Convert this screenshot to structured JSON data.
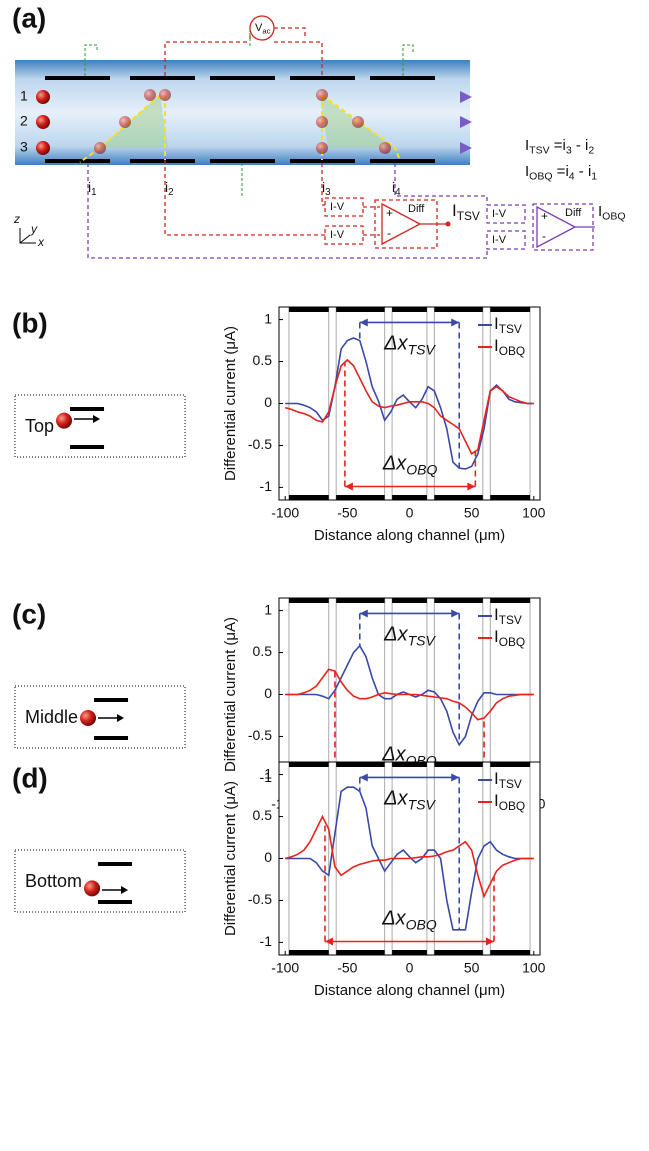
{
  "diagram": {
    "panel": "(a)",
    "rows": [
      "1",
      "2",
      "3"
    ],
    "source": [
      "V",
      "ac"
    ],
    "currents": [
      [
        "i",
        "1"
      ],
      [
        "i",
        "2"
      ],
      [
        "i",
        "3"
      ],
      [
        "i",
        "4"
      ]
    ],
    "converter": "I-V",
    "amp": "Diff",
    "plus": "+",
    "minus": "-",
    "outputs": [
      [
        "I",
        "TSV"
      ],
      [
        "I",
        "OBQ"
      ]
    ],
    "equations": [
      [
        "I",
        "TSV",
        " =i",
        "3",
        " - i",
        "2"
      ],
      [
        "I",
        "OBQ",
        " =i",
        "4",
        " - i",
        "1"
      ]
    ],
    "axes": [
      "z",
      "y",
      "x"
    ]
  },
  "chart_data": [
    {
      "type": "line",
      "panel": "(b)",
      "inset": "Top",
      "xlabel": "Distance along channel (μm)",
      "ylabel": "Differential current (μA)",
      "xlim": [
        -105,
        105
      ],
      "xticks": [
        -100,
        -50,
        0,
        50,
        100
      ],
      "ylim": [
        -1.15,
        1.15
      ],
      "yticks": [
        1,
        0.5,
        0,
        -0.5,
        -1
      ],
      "electrodes": [
        [
          -97,
          -65
        ],
        [
          -59,
          -20
        ],
        [
          -14,
          14
        ],
        [
          20,
          59
        ],
        [
          65,
          97
        ]
      ],
      "x": [
        -100,
        -95,
        -90,
        -85,
        -80,
        -75,
        -70,
        -65,
        -60,
        -55,
        -50,
        -45,
        -40,
        -35,
        -30,
        -25,
        -20,
        -15,
        -10,
        -5,
        0,
        5,
        10,
        15,
        20,
        25,
        30,
        35,
        40,
        45,
        50,
        55,
        60,
        65,
        70,
        75,
        80,
        85,
        90,
        95,
        100
      ],
      "series": [
        {
          "name": [
            "I",
            "TSV"
          ],
          "color": "#3a48a8",
          "delta": [
            "Δx",
            "TSV"
          ],
          "marker_x": [
            -40,
            40
          ],
          "values": [
            0,
            0,
            0,
            -0.02,
            -0.05,
            -0.1,
            -0.2,
            -0.15,
            0.2,
            0.65,
            0.75,
            0.78,
            0.75,
            0.5,
            0.2,
            0.03,
            -0.2,
            -0.1,
            0.05,
            0.1,
            0.02,
            -0.05,
            0.05,
            0.2,
            0.15,
            -0.05,
            -0.3,
            -0.7,
            -0.77,
            -0.78,
            -0.75,
            -0.6,
            -0.3,
            0.15,
            0.22,
            0.15,
            0.05,
            0.02,
            0.01,
            0,
            0
          ]
        },
        {
          "name": [
            "I",
            "OBQ"
          ],
          "color": "#e8231c",
          "delta": [
            "Δx",
            "OBQ"
          ],
          "marker_x": [
            -52,
            53
          ],
          "values": [
            -0.05,
            -0.07,
            -0.1,
            -0.12,
            -0.15,
            -0.2,
            -0.22,
            -0.1,
            0.2,
            0.45,
            0.52,
            0.45,
            0.3,
            0.15,
            0.02,
            -0.03,
            -0.05,
            -0.03,
            -0.02,
            0,
            0.02,
            0.02,
            0.02,
            0,
            -0.05,
            -0.15,
            -0.2,
            -0.25,
            -0.3,
            -0.45,
            -0.6,
            -0.55,
            -0.2,
            0.15,
            0.2,
            0.15,
            0.08,
            0.05,
            0.02,
            0,
            0
          ]
        }
      ]
    },
    {
      "type": "line",
      "panel": "(c)",
      "inset": "Middle",
      "xlabel": "Distance along channel (μm)",
      "ylabel": "Differential current (μA)",
      "xlim": [
        -105,
        105
      ],
      "xticks": [
        -100,
        -50,
        0,
        50,
        100
      ],
      "ylim": [
        -1.15,
        1.15
      ],
      "yticks": [
        1,
        0.5,
        0,
        -0.5,
        -1
      ],
      "electrodes": [
        [
          -97,
          -65
        ],
        [
          -59,
          -20
        ],
        [
          -14,
          14
        ],
        [
          20,
          59
        ],
        [
          65,
          97
        ]
      ],
      "x": [
        -100,
        -95,
        -90,
        -85,
        -80,
        -75,
        -70,
        -65,
        -60,
        -55,
        -50,
        -45,
        -40,
        -35,
        -30,
        -25,
        -20,
        -15,
        -10,
        -5,
        0,
        5,
        10,
        15,
        20,
        25,
        30,
        35,
        40,
        45,
        50,
        55,
        60,
        65,
        70,
        75,
        80,
        85,
        90,
        95,
        100
      ],
      "series": [
        {
          "name": [
            "I",
            "TSV"
          ],
          "color": "#3a48a8",
          "delta": [
            "Δx",
            "TSV"
          ],
          "marker_x": [
            -40,
            40
          ],
          "values": [
            0,
            0,
            0,
            0,
            0,
            0,
            -0.02,
            -0.05,
            0.05,
            0.2,
            0.35,
            0.5,
            0.58,
            0.45,
            0.2,
            0,
            -0.05,
            -0.05,
            0,
            0.03,
            0,
            -0.03,
            0,
            0.05,
            0.03,
            -0.05,
            -0.2,
            -0.45,
            -0.6,
            -0.5,
            -0.25,
            -0.08,
            0.02,
            0.02,
            0,
            0,
            0,
            0,
            0,
            0,
            0
          ]
        },
        {
          "name": [
            "I",
            "OBQ"
          ],
          "color": "#e8231c",
          "delta": [
            "Δx",
            "OBQ"
          ],
          "marker_x": [
            -60,
            60
          ],
          "values": [
            0,
            0,
            0,
            0.02,
            0.05,
            0.1,
            0.2,
            0.3,
            0.28,
            0.15,
            0.05,
            -0.02,
            -0.05,
            -0.05,
            -0.03,
            0,
            0.02,
            0.01,
            0,
            0,
            0,
            0,
            -0.01,
            -0.02,
            -0.03,
            -0.04,
            -0.05,
            -0.08,
            -0.1,
            -0.15,
            -0.22,
            -0.3,
            -0.28,
            -0.2,
            -0.1,
            -0.05,
            -0.02,
            -0.01,
            0,
            0,
            0
          ]
        }
      ]
    },
    {
      "type": "line",
      "panel": "(d)",
      "inset": "Bottom",
      "xlabel": "Distance along channel (μm)",
      "ylabel": "Differential current (μA)",
      "xlim": [
        -105,
        105
      ],
      "xticks": [
        -100,
        -50,
        0,
        50,
        100
      ],
      "ylim": [
        -1.15,
        1.15
      ],
      "yticks": [
        1,
        0.5,
        0,
        -0.5,
        -1
      ],
      "electrodes": [
        [
          -97,
          -65
        ],
        [
          -59,
          -20
        ],
        [
          -14,
          14
        ],
        [
          20,
          59
        ],
        [
          65,
          97
        ]
      ],
      "x": [
        -100,
        -95,
        -90,
        -85,
        -80,
        -75,
        -70,
        -65,
        -60,
        -55,
        -50,
        -45,
        -40,
        -35,
        -30,
        -25,
        -20,
        -15,
        -10,
        -5,
        0,
        5,
        10,
        15,
        20,
        25,
        30,
        35,
        40,
        45,
        50,
        55,
        60,
        65,
        70,
        75,
        80,
        85,
        90,
        95,
        100
      ],
      "series": [
        {
          "name": [
            "I",
            "TSV"
          ],
          "color": "#3a48a8",
          "delta": [
            "Δx",
            "TSV"
          ],
          "marker_x": [
            -40,
            40
          ],
          "values": [
            0,
            0,
            0,
            0,
            0,
            -0.05,
            -0.15,
            -0.2,
            0.3,
            0.8,
            0.85,
            0.85,
            0.8,
            0.6,
            0.15,
            0,
            -0.15,
            -0.05,
            0.05,
            0.1,
            0.02,
            -0.05,
            0,
            0.1,
            0.1,
            0,
            -0.5,
            -0.85,
            -0.85,
            -0.85,
            -0.4,
            0,
            0.15,
            0.2,
            0.1,
            0.05,
            0.02,
            0,
            0,
            0,
            0
          ]
        },
        {
          "name": [
            "I",
            "OBQ"
          ],
          "color": "#e8231c",
          "delta": [
            "Δx",
            "OBQ"
          ],
          "marker_x": [
            -68,
            68
          ],
          "values": [
            0,
            0.02,
            0.05,
            0.1,
            0.2,
            0.35,
            0.5,
            0.35,
            -0.1,
            -0.2,
            -0.15,
            -0.1,
            -0.07,
            -0.05,
            -0.03,
            -0.02,
            -0.02,
            0,
            0,
            0,
            0,
            0.01,
            0.02,
            0.02,
            0.03,
            0.05,
            0.08,
            0.1,
            0.15,
            0.2,
            0.1,
            -0.2,
            -0.45,
            -0.3,
            -0.15,
            -0.08,
            -0.05,
            -0.02,
            0,
            0,
            0
          ]
        }
      ]
    }
  ]
}
